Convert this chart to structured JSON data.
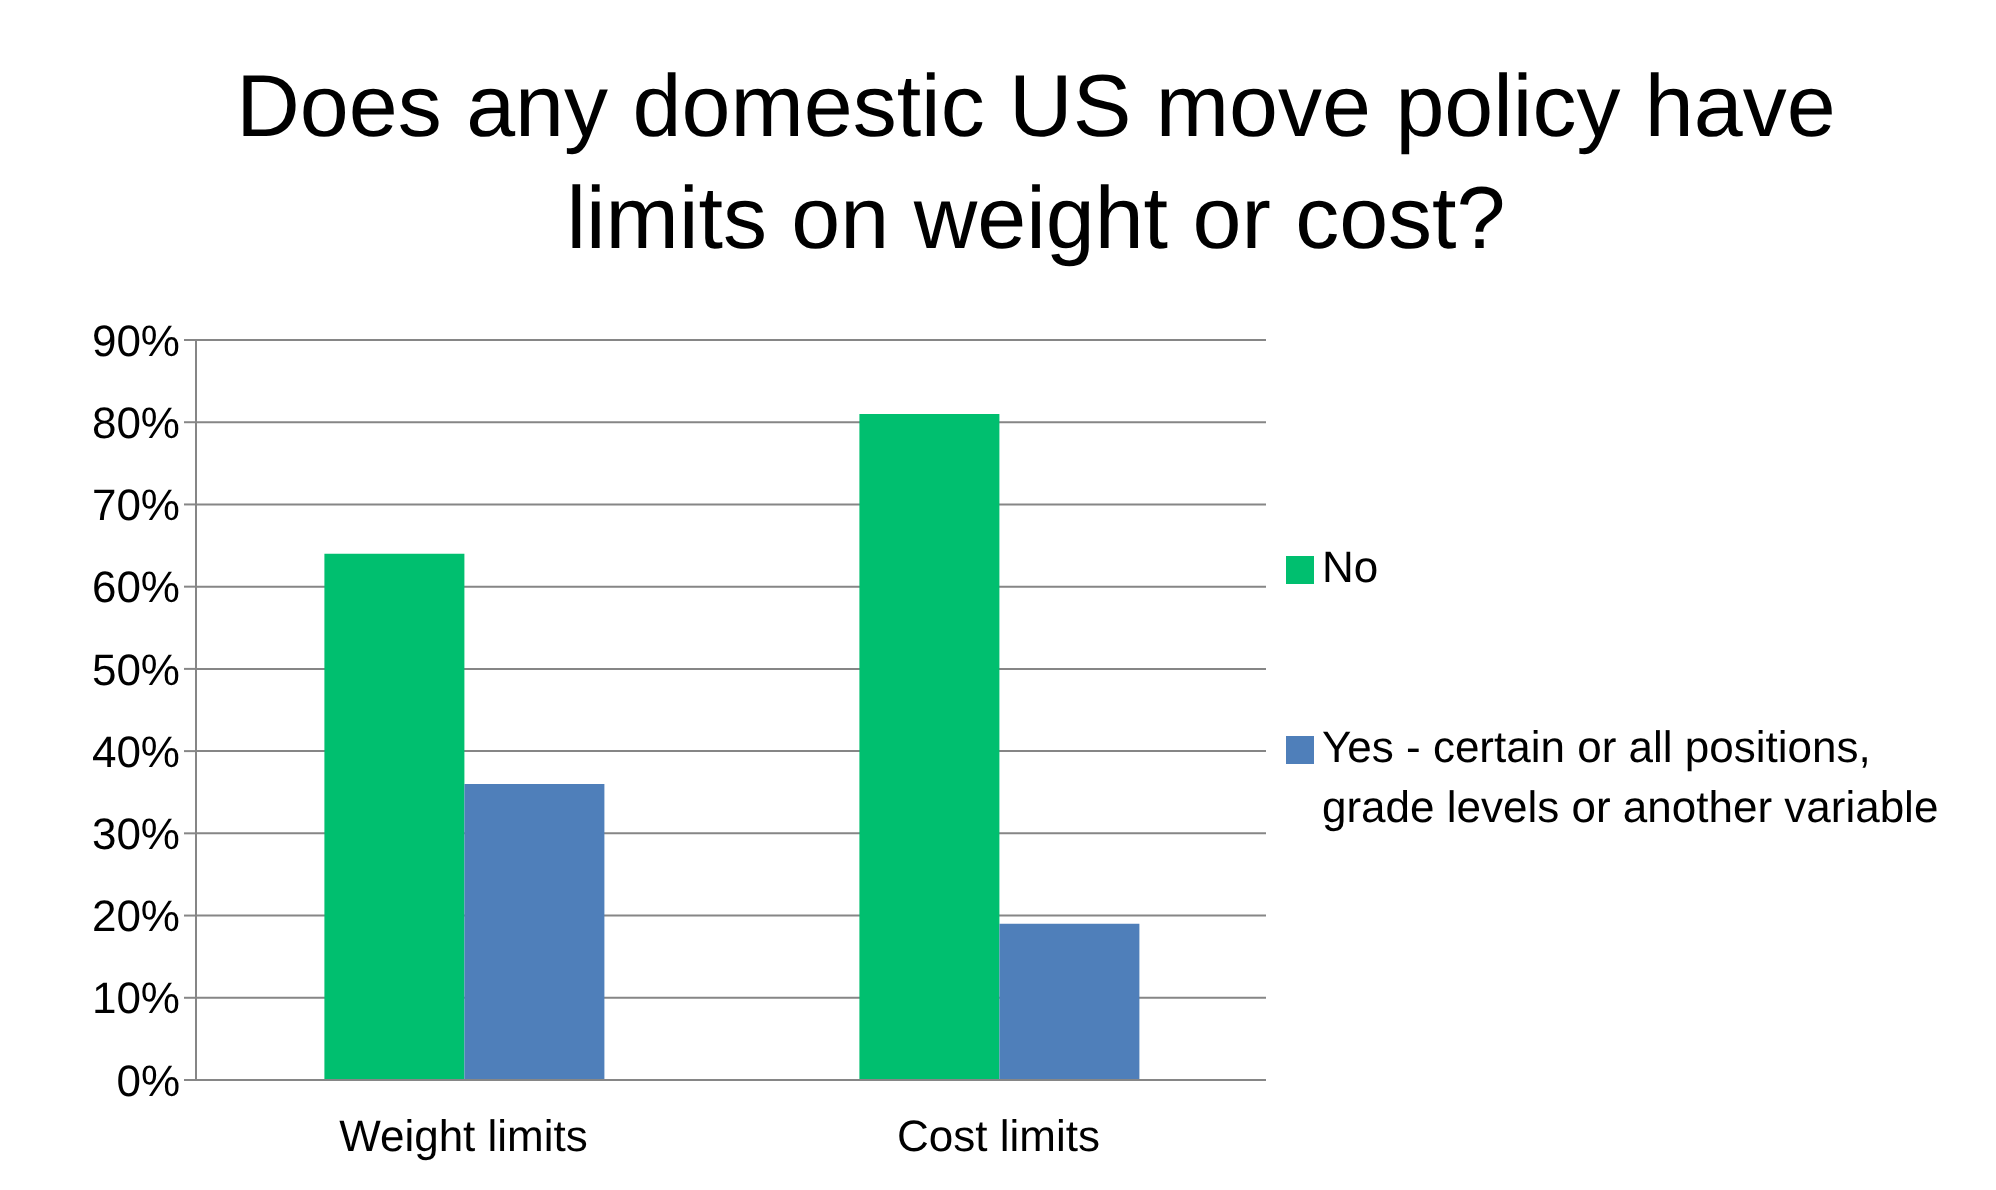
{
  "chart_data": {
    "type": "bar",
    "title": "Does any domestic US move policy have limits on weight or cost?",
    "categories": [
      "Weight limits",
      "Cost limits"
    ],
    "series": [
      {
        "name": "No",
        "color": "#00bf6f",
        "values": [
          64,
          81
        ]
      },
      {
        "name": "Yes - certain or all positions, grade levels or another variable",
        "color": "#4f7fba",
        "values": [
          36,
          19
        ]
      }
    ],
    "ylim": [
      0,
      90
    ],
    "yticks": [
      {
        "value": 0,
        "label": "0%"
      },
      {
        "value": 10,
        "label": "10%"
      },
      {
        "value": 20,
        "label": "20%"
      },
      {
        "value": 30,
        "label": "30%"
      },
      {
        "value": 40,
        "label": "40%"
      },
      {
        "value": 50,
        "label": "50%"
      },
      {
        "value": 60,
        "label": "60%"
      },
      {
        "value": 70,
        "label": "70%"
      },
      {
        "value": 80,
        "label": "80%"
      },
      {
        "value": 90,
        "label": "90%"
      }
    ],
    "grid": "y",
    "legend": "right"
  }
}
